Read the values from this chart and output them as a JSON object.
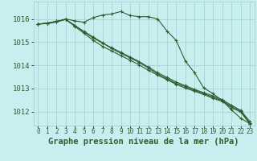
{
  "background_color": "#c8eef0",
  "plot_bg_color": "#c8eef0",
  "grid_color": "#9ecfcc",
  "line_color": "#2d5e2d",
  "xlabel": "Graphe pression niveau de la mer (hPa)",
  "xlabel_fontsize": 7.5,
  "ytick_fontsize": 6.5,
  "xtick_fontsize": 5.5,
  "ylim": [
    1011.4,
    1016.75
  ],
  "yticks": [
    1012,
    1013,
    1014,
    1015,
    1016
  ],
  "xlim": [
    -0.5,
    23.5
  ],
  "xticks": [
    0,
    1,
    2,
    3,
    4,
    5,
    6,
    7,
    8,
    9,
    10,
    11,
    12,
    13,
    14,
    15,
    16,
    17,
    18,
    19,
    20,
    21,
    22,
    23
  ],
  "series": [
    [
      1015.78,
      1015.8,
      1015.87,
      1016.0,
      1015.92,
      1015.86,
      1016.06,
      1016.17,
      1016.22,
      1016.32,
      1016.15,
      1016.1,
      1016.1,
      1016.0,
      1015.48,
      1015.08,
      1014.18,
      1013.68,
      1013.02,
      1012.78,
      1012.48,
      1012.08,
      1011.72,
      1011.48
    ],
    [
      1015.78,
      1015.82,
      1015.9,
      1015.98,
      1015.72,
      1015.44,
      1015.18,
      1014.96,
      1014.76,
      1014.56,
      1014.36,
      1014.16,
      1013.92,
      1013.68,
      1013.48,
      1013.28,
      1013.12,
      1012.96,
      1012.82,
      1012.68,
      1012.52,
      1012.28,
      1012.06,
      1011.58
    ],
    [
      1015.78,
      1015.82,
      1015.9,
      1015.98,
      1015.72,
      1015.46,
      1015.22,
      1014.98,
      1014.72,
      1014.52,
      1014.32,
      1014.12,
      1013.88,
      1013.62,
      1013.42,
      1013.22,
      1013.08,
      1012.92,
      1012.78,
      1012.62,
      1012.48,
      1012.22,
      1012.02,
      1011.52
    ],
    [
      1015.78,
      1015.82,
      1015.88,
      1015.98,
      1015.68,
      1015.38,
      1015.08,
      1014.82,
      1014.62,
      1014.42,
      1014.22,
      1014.02,
      1013.78,
      1013.58,
      1013.38,
      1013.18,
      1013.02,
      1012.88,
      1012.74,
      1012.58,
      1012.44,
      1012.18,
      1011.98,
      1011.48
    ]
  ]
}
